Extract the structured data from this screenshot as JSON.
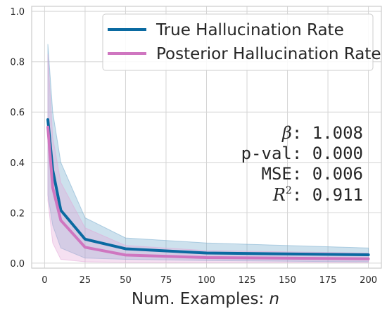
{
  "chart_data": {
    "type": "line",
    "xlabel": "Num. Examples: n",
    "xlim": [
      -8,
      208
    ],
    "ylim": [
      -0.02,
      1.02
    ],
    "x_ticks": [
      0,
      25,
      50,
      75,
      100,
      125,
      150,
      175,
      200
    ],
    "y_ticks": [
      0.0,
      0.2,
      0.4,
      0.6,
      0.8,
      1.0
    ],
    "grid": true,
    "legend_position": "upper-right",
    "series": [
      {
        "name": "True Hallucination Rate",
        "color": "#0a6aa1",
        "x": [
          2,
          5,
          10,
          25,
          50,
          100,
          200
        ],
        "y": [
          0.57,
          0.37,
          0.21,
          0.095,
          0.057,
          0.04,
          0.033
        ],
        "lower": [
          0.27,
          0.15,
          0.06,
          0.02,
          0.015,
          0.01,
          0.005
        ],
        "upper": [
          0.87,
          0.6,
          0.4,
          0.18,
          0.1,
          0.08,
          0.06
        ],
        "band_color": "#6fa8cc"
      },
      {
        "name": "Posterior Hallucination Rate",
        "color": "#cf76c0",
        "x": [
          2,
          5,
          10,
          25,
          50,
          100,
          200
        ],
        "y": [
          0.54,
          0.3,
          0.17,
          0.063,
          0.032,
          0.022,
          0.017
        ],
        "lower": [
          0.25,
          0.08,
          0.015,
          0.005,
          0.003,
          0.002,
          0.002
        ],
        "upper": [
          0.83,
          0.5,
          0.32,
          0.14,
          0.07,
          0.05,
          0.04
        ],
        "band_color": "#e3a6d8"
      }
    ],
    "annotations": {
      "beta": ": 1.008",
      "pval": "p-val: 0.000",
      "mse": "MSE: 0.006",
      "r2": ": 0.911"
    }
  }
}
